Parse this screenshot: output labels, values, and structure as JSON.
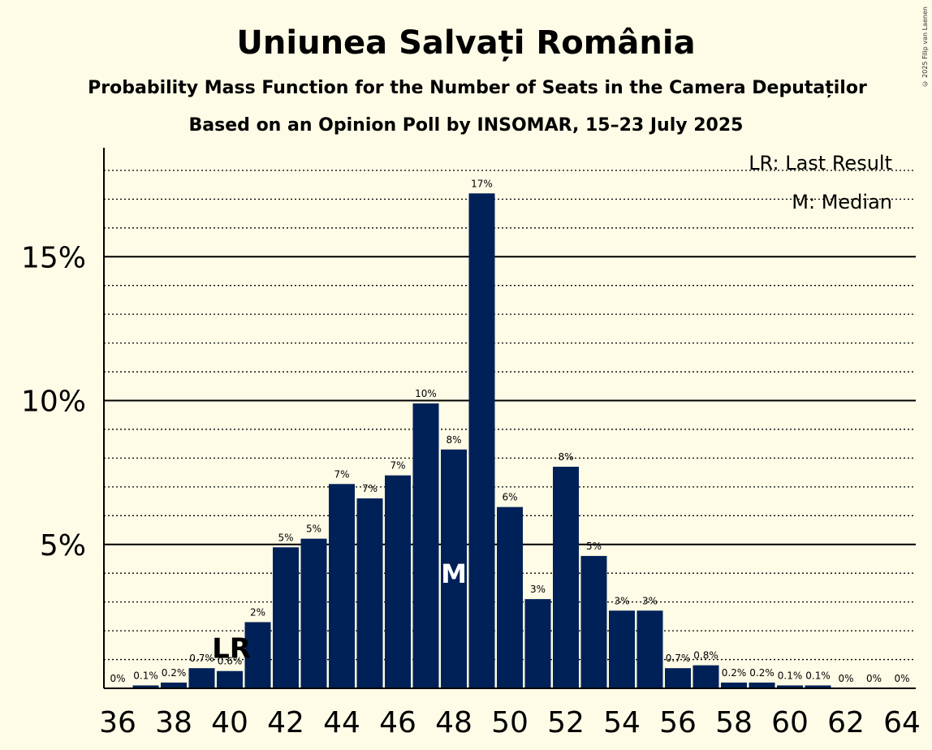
{
  "header": {
    "title": "Uniunea Salvați România",
    "subtitle": "Probability Mass Function for the Number of Seats in the Camera Deputaților",
    "source": "Based on an Opinion Poll by INSOMAR, 15–23 July 2025"
  },
  "copyright": "© 2025 Filip van Laenen",
  "legend": {
    "last_result": "LR: Last Result",
    "median": "M: Median",
    "placement": "top-right"
  },
  "markers": {
    "last_result": {
      "label": "LR",
      "seat": 40
    },
    "median": {
      "label": "M",
      "seat": 48
    }
  },
  "colors": {
    "bar": "#002157",
    "background": "#fefbe6",
    "gridline": "#000000"
  },
  "chart_data": {
    "type": "bar",
    "xlabel": "",
    "ylabel": "",
    "x": [
      36,
      37,
      38,
      39,
      40,
      41,
      42,
      43,
      44,
      45,
      46,
      47,
      48,
      49,
      50,
      51,
      52,
      53,
      54,
      55,
      56,
      57,
      58,
      59,
      60,
      61,
      62,
      63,
      64
    ],
    "values": [
      0,
      0.1,
      0.2,
      0.7,
      0.6,
      2.3,
      4.9,
      5.2,
      7.1,
      6.6,
      7.4,
      9.9,
      8.3,
      17.2,
      6.3,
      3.1,
      7.7,
      4.6,
      2.7,
      2.7,
      0.7,
      0.8,
      0.2,
      0.2,
      0.1,
      0.1,
      0,
      0,
      0
    ],
    "value_labels": [
      "0%",
      "0.1%",
      "0.2%",
      "0.7%",
      "0.6%",
      "2%",
      "5%",
      "5%",
      "7%",
      "7%",
      "7%",
      "10%",
      "8%",
      "17%",
      "6%",
      "3%",
      "8%",
      "5%",
      "3%",
      "3%",
      "0.7%",
      "0.8%",
      "0.2%",
      "0.2%",
      "0.1%",
      "0.1%",
      "0%",
      "0%",
      "0%"
    ],
    "x_ticks": [
      36,
      38,
      40,
      42,
      44,
      46,
      48,
      50,
      52,
      54,
      56,
      58,
      60,
      62,
      64
    ],
    "y_ticks": [
      {
        "value": 5,
        "label": "5%"
      },
      {
        "value": 10,
        "label": "10%"
      },
      {
        "value": 15,
        "label": "15%"
      }
    ],
    "ylim": [
      0,
      18.8
    ],
    "xlim": [
      35.5,
      64.5
    ],
    "grid": true
  }
}
